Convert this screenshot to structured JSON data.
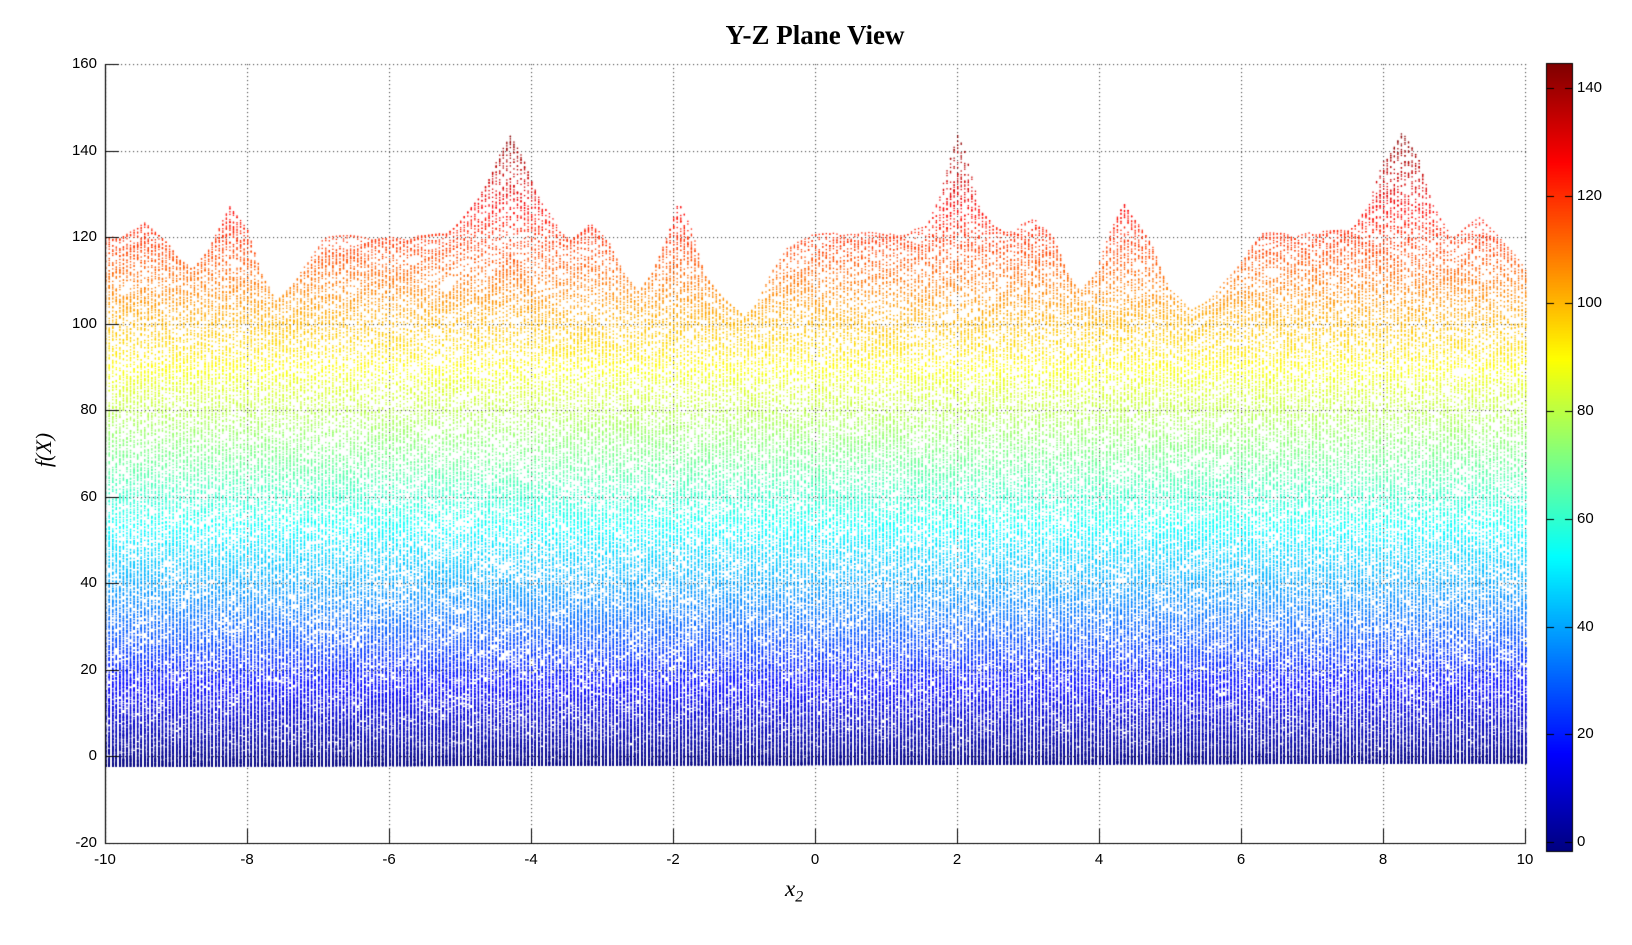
{
  "figure": {
    "title": "Y-Z Plane View",
    "background": "#ffffff"
  },
  "chart_data": {
    "type": "scatter",
    "title": "Y-Z Plane View",
    "xlabel": "x_2",
    "xlabel_base": "x",
    "xlabel_sub": "2",
    "ylabel": "f(X)",
    "xlim": [
      -10,
      10
    ],
    "ylim": [
      -20,
      160
    ],
    "x_tick_values": [
      -10,
      -8,
      -6,
      -4,
      -2,
      0,
      2,
      4,
      6,
      8,
      10
    ],
    "x_tick_labels": [
      "-10",
      "-8",
      "-6",
      "-4",
      "-2",
      "0",
      "2",
      "4",
      "6",
      "8",
      "10"
    ],
    "y_tick_values": [
      -20,
      0,
      20,
      40,
      60,
      80,
      100,
      120,
      140,
      160
    ],
    "y_tick_labels": [
      "-20",
      "0",
      "20",
      "40",
      "60",
      "80",
      "100",
      "120",
      "140",
      "160"
    ],
    "grid": "dotted",
    "grid_color": "#4a4a4a",
    "marker": "point",
    "sample_step_x2": 0.05,
    "sample_step_x1": 0.04,
    "description": "Dense point-cloud projection of a multimodal 3D surface onto the x2 / f(X) plane (view along x1), points colored by f value with jet colormap",
    "value_range": [
      -2,
      144.8
    ],
    "peaks": [
      {
        "x": -4.3,
        "f": 144.0
      },
      {
        "x": 2.0,
        "f": 144.4
      },
      {
        "x": 8.26,
        "f": 144.8
      }
    ],
    "upper_envelope": [
      [
        -10,
        121
      ],
      [
        -9.8,
        120
      ],
      [
        -9.45,
        123.5
      ],
      [
        -9.1,
        118
      ],
      [
        -8.77,
        112.5
      ],
      [
        -8.55,
        117
      ],
      [
        -8.25,
        127.5
      ],
      [
        -8.0,
        122
      ],
      [
        -7.8,
        112
      ],
      [
        -7.6,
        106.3
      ],
      [
        -7.35,
        110
      ],
      [
        -7.1,
        116
      ],
      [
        -6.93,
        120
      ],
      [
        -6.5,
        120.3
      ],
      [
        -6.0,
        120.5
      ],
      [
        -5.5,
        120.8
      ],
      [
        -5.2,
        121.5
      ],
      [
        -5.0,
        124
      ],
      [
        -4.75,
        129
      ],
      [
        -4.5,
        138
      ],
      [
        -4.3,
        144.0
      ],
      [
        -4.1,
        138
      ],
      [
        -3.85,
        128
      ],
      [
        -3.6,
        122
      ],
      [
        -3.45,
        120.7
      ],
      [
        -3.17,
        124.3
      ],
      [
        -2.9,
        119
      ],
      [
        -2.7,
        112
      ],
      [
        -2.49,
        107.7
      ],
      [
        -2.3,
        112
      ],
      [
        -2.1,
        120
      ],
      [
        -1.93,
        128.2
      ],
      [
        -1.75,
        122
      ],
      [
        -1.55,
        112
      ],
      [
        -1.29,
        106
      ],
      [
        -1.0,
        102
      ],
      [
        -0.8,
        106
      ],
      [
        -0.6,
        113
      ],
      [
        -0.4,
        118.5
      ],
      [
        -0.2,
        120.3
      ],
      [
        0,
        120.6
      ],
      [
        0.5,
        121.2
      ],
      [
        1.0,
        121.4
      ],
      [
        1.3,
        121.8
      ],
      [
        1.57,
        123
      ],
      [
        1.75,
        130
      ],
      [
        1.9,
        140
      ],
      [
        2.0,
        144.4
      ],
      [
        2.1,
        140
      ],
      [
        2.3,
        128
      ],
      [
        2.5,
        122.5
      ],
      [
        2.68,
        120.8
      ],
      [
        2.9,
        122.8
      ],
      [
        3.1,
        124.3
      ],
      [
        3.35,
        120
      ],
      [
        3.55,
        112.5
      ],
      [
        3.73,
        107.7
      ],
      [
        3.95,
        113
      ],
      [
        4.15,
        122
      ],
      [
        4.34,
        128.8
      ],
      [
        4.55,
        123
      ],
      [
        4.74,
        118
      ],
      [
        5.0,
        108
      ],
      [
        5.28,
        103
      ],
      [
        5.6,
        107
      ],
      [
        5.9,
        112.5
      ],
      [
        6.1,
        117.5
      ],
      [
        6.3,
        121.3
      ],
      [
        6.55,
        121.6
      ],
      [
        6.8,
        121
      ],
      [
        7.1,
        121.2
      ],
      [
        7.45,
        121.5
      ],
      [
        7.58,
        122
      ],
      [
        7.8,
        128
      ],
      [
        8.0,
        138
      ],
      [
        8.26,
        144.8
      ],
      [
        8.5,
        139
      ],
      [
        8.7,
        128
      ],
      [
        8.96,
        120.5
      ],
      [
        9.15,
        122.5
      ],
      [
        9.37,
        124.7
      ],
      [
        9.6,
        121
      ],
      [
        9.8,
        117
      ],
      [
        10,
        112.5
      ]
    ],
    "lower_envelope": [
      [
        -10,
        -2.1
      ],
      [
        -5,
        -1.9
      ],
      [
        0,
        -1.7
      ],
      [
        5,
        -1.5
      ],
      [
        10,
        -1.3
      ]
    ],
    "colorbar": {
      "ticks": [
        "0",
        "20",
        "40",
        "60",
        "80",
        "100",
        "120",
        "140"
      ],
      "tick_values": [
        0,
        20,
        40,
        60,
        80,
        100,
        120,
        140
      ],
      "min": -2,
      "max": 144.8,
      "colormap": "jet",
      "anchor_colors": [
        "#000080",
        "#0000ff",
        "#00ffff",
        "#ffff00",
        "#ff0000",
        "#800000"
      ]
    }
  }
}
